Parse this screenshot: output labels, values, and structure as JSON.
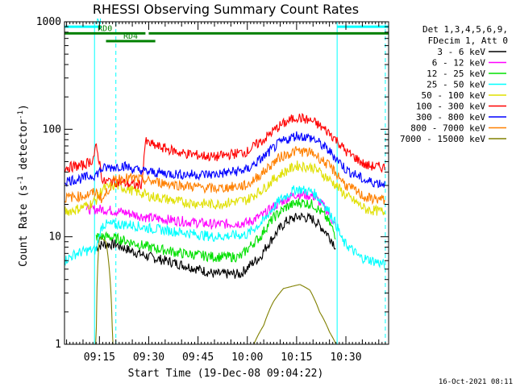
{
  "chart_data": {
    "type": "line",
    "title": "RHESSI Observing Summary Count Rates",
    "xlabel": "Start Time (19-Dec-08 09:04:22)",
    "ylabel_main": "Count Rate (s",
    "ylabel_sup1": "-1",
    "ylabel_mid": " detector",
    "ylabel_sup2": "-1",
    "ylabel_end": ")",
    "yscale": "log",
    "ylim": [
      1,
      1000
    ],
    "y_ticks": [
      {
        "value": 1,
        "label": "1"
      },
      {
        "value": 10,
        "label": "10"
      },
      {
        "value": 100,
        "label": "100"
      },
      {
        "value": 1000,
        "label": "1000"
      }
    ],
    "xlim": [
      "09:04:22",
      "10:43:00"
    ],
    "x_ticks": [
      {
        "time": "09:15",
        "label": "09:15"
      },
      {
        "time": "09:30",
        "label": "09:30"
      },
      {
        "time": "09:45",
        "label": "09:45"
      },
      {
        "time": "10:00",
        "label": "10:00"
      },
      {
        "time": "10:15",
        "label": "10:15"
      },
      {
        "time": "10:30",
        "label": "10:30"
      }
    ],
    "legend_header": [
      "Det 1,3,4,5,6,9,",
      "FDecim 1, Att 0"
    ],
    "legend_position": "right",
    "series": [
      {
        "name": "3 - 6 keV",
        "color": "#000000",
        "points": [
          [
            "09:14",
            8
          ],
          [
            "09:16",
            8.5
          ],
          [
            "09:20",
            8.5
          ],
          [
            "09:24",
            7.5
          ],
          [
            "09:30",
            6.5
          ],
          [
            "09:40",
            5.5
          ],
          [
            "09:50",
            4.5
          ],
          [
            "09:58",
            4.5
          ],
          [
            "10:04",
            6.5
          ],
          [
            "10:08",
            10
          ],
          [
            "10:12",
            14
          ],
          [
            "10:16",
            15.5
          ],
          [
            "10:20",
            14.5
          ],
          [
            "10:24",
            11
          ],
          [
            "10:27",
            8
          ]
        ]
      },
      {
        "name": "6 - 12 keV",
        "color": "#ff00ff",
        "points": [
          [
            "09:11",
            18
          ],
          [
            "09:16",
            18
          ],
          [
            "09:22",
            17
          ],
          [
            "09:30",
            15
          ],
          [
            "09:40",
            14
          ],
          [
            "09:50",
            13
          ],
          [
            "10:00",
            13.5
          ],
          [
            "10:05",
            16
          ],
          [
            "10:10",
            21
          ],
          [
            "10:15",
            25
          ],
          [
            "10:20",
            24
          ],
          [
            "10:24",
            18
          ],
          [
            "10:27",
            12
          ]
        ]
      },
      {
        "name": "12 - 25 keV",
        "color": "#00e000",
        "points": [
          [
            "09:14",
            10
          ],
          [
            "09:18",
            10
          ],
          [
            "09:24",
            9
          ],
          [
            "09:30",
            8
          ],
          [
            "09:40",
            7
          ],
          [
            "09:50",
            6.5
          ],
          [
            "09:58",
            6.5
          ],
          [
            "10:04",
            10
          ],
          [
            "10:08",
            15
          ],
          [
            "10:12",
            19
          ],
          [
            "10:16",
            21
          ],
          [
            "10:20",
            20
          ],
          [
            "10:24",
            15
          ],
          [
            "10:27",
            10
          ]
        ]
      },
      {
        "name": "25 - 50 keV",
        "color": "#00ffff",
        "points": [
          [
            "09:04:22",
            6
          ],
          [
            "09:08",
            7
          ],
          [
            "09:12",
            7.5
          ],
          [
            "09:14",
            7.5
          ],
          [
            "09:16",
            13
          ],
          [
            "09:24",
            13
          ],
          [
            "09:30",
            12
          ],
          [
            "09:40",
            11
          ],
          [
            "09:50",
            10
          ],
          [
            "10:00",
            10.5
          ],
          [
            "10:05",
            14
          ],
          [
            "10:10",
            22
          ],
          [
            "10:15",
            28
          ],
          [
            "10:20",
            26
          ],
          [
            "10:25",
            17
          ],
          [
            "10:29",
            9
          ],
          [
            "10:34",
            6.5
          ],
          [
            "10:42",
            5.5
          ]
        ]
      },
      {
        "name": "50 - 100 keV",
        "color": "#e0e000",
        "points": [
          [
            "09:04:22",
            17
          ],
          [
            "09:08",
            18
          ],
          [
            "09:12",
            20
          ],
          [
            "09:14",
            22
          ],
          [
            "09:16",
            28
          ],
          [
            "09:20",
            30
          ],
          [
            "09:25",
            27
          ],
          [
            "09:30",
            24
          ],
          [
            "09:40",
            21
          ],
          [
            "09:50",
            20
          ],
          [
            "10:00",
            22
          ],
          [
            "10:05",
            28
          ],
          [
            "10:10",
            38
          ],
          [
            "10:15",
            46
          ],
          [
            "10:20",
            44
          ],
          [
            "10:25",
            34
          ],
          [
            "10:30",
            24
          ],
          [
            "10:36",
            18
          ],
          [
            "10:42",
            17
          ]
        ]
      },
      {
        "name": "100 - 300 keV",
        "color": "#ff0000",
        "points": [
          [
            "09:04:22",
            44
          ],
          [
            "09:10",
            46
          ],
          [
            "09:13",
            52
          ],
          [
            "09:14",
            68
          ],
          [
            "09:16",
            32
          ],
          [
            "09:18",
            33
          ],
          [
            "09:22",
            32
          ],
          [
            "09:26",
            30
          ],
          [
            "09:28",
            31
          ],
          [
            "09:29",
            76
          ],
          [
            "09:32",
            70
          ],
          [
            "09:40",
            60
          ],
          [
            "09:50",
            55
          ],
          [
            "10:00",
            62
          ],
          [
            "10:05",
            80
          ],
          [
            "10:10",
            108
          ],
          [
            "10:15",
            130
          ],
          [
            "10:20",
            118
          ],
          [
            "10:25",
            92
          ],
          [
            "10:30",
            62
          ],
          [
            "10:36",
            46
          ],
          [
            "10:42",
            44
          ]
        ]
      },
      {
        "name": "300 - 800 keV",
        "color": "#0000ff",
        "points": [
          [
            "09:04:22",
            33
          ],
          [
            "09:10",
            35
          ],
          [
            "09:14",
            38
          ],
          [
            "09:16",
            43
          ],
          [
            "09:22",
            46
          ],
          [
            "09:26",
            42
          ],
          [
            "09:30",
            40
          ],
          [
            "09:40",
            38
          ],
          [
            "09:50",
            38
          ],
          [
            "10:00",
            42
          ],
          [
            "10:05",
            55
          ],
          [
            "10:10",
            75
          ],
          [
            "10:15",
            88
          ],
          [
            "10:20",
            82
          ],
          [
            "10:25",
            62
          ],
          [
            "10:30",
            42
          ],
          [
            "10:36",
            33
          ],
          [
            "10:42",
            31
          ]
        ]
      },
      {
        "name": "800 - 7000 keV",
        "color": "#ff8000",
        "points": [
          [
            "09:04:22",
            23
          ],
          [
            "09:10",
            24
          ],
          [
            "09:14",
            26
          ],
          [
            "09:16",
            22
          ],
          [
            "09:20",
            35
          ],
          [
            "09:25",
            35
          ],
          [
            "09:30",
            33
          ],
          [
            "09:40",
            30
          ],
          [
            "09:50",
            28
          ],
          [
            "10:00",
            30
          ],
          [
            "10:05",
            40
          ],
          [
            "10:10",
            55
          ],
          [
            "10:15",
            63
          ],
          [
            "10:20",
            60
          ],
          [
            "10:25",
            45
          ],
          [
            "10:30",
            30
          ],
          [
            "10:36",
            23
          ],
          [
            "10:42",
            22
          ]
        ]
      },
      {
        "name": "7000 - 15000 keV",
        "color": "#808000",
        "points": [
          [
            "09:04:22",
            1
          ],
          [
            "09:14",
            1
          ],
          [
            "09:15",
            10
          ],
          [
            "09:17",
            9
          ],
          [
            "09:19",
            1
          ],
          [
            "10:02",
            1
          ],
          [
            "10:05",
            1.5
          ],
          [
            "10:08",
            2.5
          ],
          [
            "10:11",
            3.3
          ],
          [
            "10:16",
            3.6
          ],
          [
            "10:19",
            3.2
          ],
          [
            "10:22",
            2
          ],
          [
            "10:25",
            1.3
          ],
          [
            "10:27",
            1
          ]
        ]
      }
    ],
    "annotations": {
      "bars": [
        {
          "label": "N",
          "color": "#00ffff",
          "from": "09:04:22",
          "to": "09:15:30",
          "value": 900
        },
        {
          "label": "",
          "color": "#00ffff",
          "from": "10:27:20",
          "to": "10:43:00",
          "value": 900
        },
        {
          "label": "RD0",
          "color": "#008000",
          "from": "09:04:22",
          "to": "09:29:00",
          "value": 780
        },
        {
          "label": "",
          "color": "#008000",
          "from": "09:30:00",
          "to": "10:43:00",
          "value": 780
        },
        {
          "label": "RD4",
          "color": "#008000",
          "from": "09:17:00",
          "to": "09:32:00",
          "value": 660
        }
      ],
      "vlines": [
        {
          "time": "09:13:30",
          "color": "#00ffff",
          "style": "solid"
        },
        {
          "time": "09:20:00",
          "color": "#00ffff",
          "style": "dashed"
        },
        {
          "time": "10:27:20",
          "color": "#00ffff",
          "style": "solid"
        },
        {
          "time": "10:42:00",
          "color": "#00ffff",
          "style": "dashed"
        }
      ]
    },
    "footer_date": "16-Oct-2021 08:11"
  }
}
